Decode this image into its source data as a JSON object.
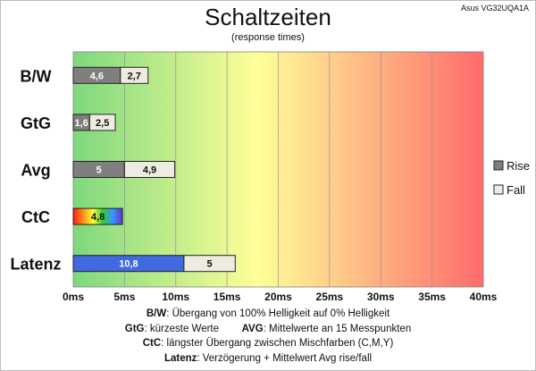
{
  "chart_data": {
    "type": "bar",
    "orientation": "horizontal",
    "stacked": true,
    "title": "Schaltzeiten",
    "subtitle": "(response times)",
    "model": "Asus VG32UQA1A",
    "categories": [
      "B/W",
      "GtG",
      "Avg",
      "CtC",
      "Latenz"
    ],
    "series": [
      {
        "name": "Rise",
        "values": [
          4.6,
          1.6,
          5,
          4.8,
          10.8
        ],
        "labels": [
          "4,6",
          "1,6",
          "5",
          "4,8",
          "10,8"
        ],
        "color": "#7f7f7f"
      },
      {
        "name": "Fall",
        "values": [
          2.7,
          2.5,
          4.9,
          null,
          5
        ],
        "labels": [
          "2,7",
          "2,5",
          "4,9",
          "",
          "5"
        ],
        "color": "#eeece1"
      }
    ],
    "latency_color": "#4169e1",
    "xlim": [
      0,
      40
    ],
    "xticks": [
      0,
      5,
      10,
      15,
      20,
      25,
      30,
      35,
      40
    ],
    "xtick_labels": [
      "0ms",
      "5ms",
      "10ms",
      "15ms",
      "20ms",
      "25ms",
      "30ms",
      "35ms",
      "40ms"
    ],
    "grid": true,
    "legend": "right",
    "background_gradient": [
      "#7dd87d",
      "#ffff99",
      "#ff6b6b"
    ]
  },
  "notes": [
    {
      "k1": "B/W",
      "t1": ":  Übergang von 100% Helligkeit auf 0% Helligkeit",
      "k2": "",
      "t2": ""
    },
    {
      "k1": "GtG",
      "t1": ": kürzeste  Werte",
      "k2": "AVG",
      "t2": ": Mittelwerte  an 15 Messpunkten"
    },
    {
      "k1": "CtC",
      "t1": ": längster Übergang  zwischen Mischfarben (C,M,Y)",
      "k2": "",
      "t2": ""
    },
    {
      "k1": "Latenz",
      "t1": ": Verzögerung  + Mittelwert Avg rise/fall",
      "k2": "",
      "t2": ""
    }
  ]
}
